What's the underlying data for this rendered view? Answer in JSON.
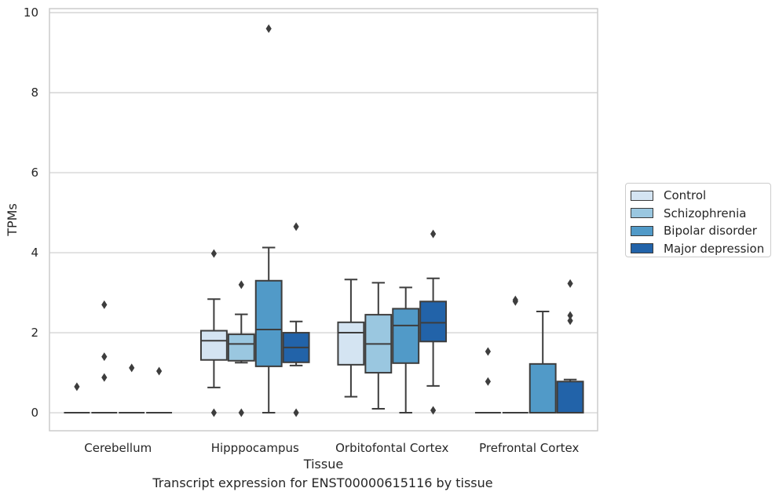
{
  "chart_data": {
    "type": "box",
    "xlabel": "Tissue",
    "ylabel": "TPMs",
    "ylim": [
      -0.45,
      10.1
    ],
    "yticks": [
      0,
      2,
      4,
      6,
      8,
      10
    ],
    "grid": "horizontal",
    "legend_position": "right",
    "categories": [
      "Cerebellum",
      "Hipppocampus",
      "Orbitofontal Cortex",
      "Prefrontal Cortex"
    ],
    "series": [
      {
        "name": "Control",
        "color": "#d4e4f2",
        "boxes": [
          {
            "min": 0,
            "q1": 0,
            "median": 0,
            "q3": 0,
            "max": 0,
            "outliers": [
              0.65
            ]
          },
          {
            "min": 0.63,
            "q1": 1.32,
            "median": 1.8,
            "q3": 2.05,
            "max": 2.84,
            "outliers": [
              3.98,
              0
            ]
          },
          {
            "min": 0.4,
            "q1": 1.2,
            "median": 2.0,
            "q3": 2.26,
            "max": 3.33,
            "outliers": []
          },
          {
            "min": 0,
            "q1": 0,
            "median": 0,
            "q3": 0,
            "max": 0,
            "outliers": [
              1.53,
              0.78
            ]
          }
        ]
      },
      {
        "name": "Schizophrenia",
        "color": "#9ac7e0",
        "boxes": [
          {
            "min": 0,
            "q1": 0,
            "median": 0,
            "q3": 0,
            "max": 0,
            "outliers": [
              2.7,
              1.4,
              0.88
            ]
          },
          {
            "min": 1.25,
            "q1": 1.3,
            "median": 1.72,
            "q3": 1.96,
            "max": 2.46,
            "outliers": [
              3.2,
              0
            ]
          },
          {
            "min": 0.1,
            "q1": 1.0,
            "median": 1.72,
            "q3": 2.45,
            "max": 3.25,
            "outliers": []
          },
          {
            "min": 0,
            "q1": 0,
            "median": 0,
            "q3": 0,
            "max": 0,
            "outliers": [
              2.82,
              2.78
            ]
          }
        ]
      },
      {
        "name": "Bipolar disorder",
        "color": "#519ac8",
        "boxes": [
          {
            "min": 0,
            "q1": 0,
            "median": 0,
            "q3": 0,
            "max": 0,
            "outliers": [
              1.12
            ]
          },
          {
            "min": 0,
            "q1": 1.16,
            "median": 2.08,
            "q3": 3.3,
            "max": 4.13,
            "outliers": [
              9.6
            ]
          },
          {
            "min": 0,
            "q1": 1.24,
            "median": 2.18,
            "q3": 2.6,
            "max": 3.13,
            "outliers": []
          },
          {
            "min": 0,
            "q1": 0,
            "median": 0,
            "q3": 1.22,
            "max": 2.53,
            "outliers": []
          }
        ]
      },
      {
        "name": "Major depression",
        "color": "#2263a9",
        "boxes": [
          {
            "min": 0,
            "q1": 0,
            "median": 0,
            "q3": 0,
            "max": 0,
            "outliers": [
              1.04
            ]
          },
          {
            "min": 1.18,
            "q1": 1.26,
            "median": 1.63,
            "q3": 2.0,
            "max": 2.28,
            "outliers": [
              4.65,
              0
            ]
          },
          {
            "min": 0.67,
            "q1": 1.78,
            "median": 2.25,
            "q3": 2.78,
            "max": 3.36,
            "outliers": [
              4.47,
              0.06
            ]
          },
          {
            "min": 0,
            "q1": 0,
            "median": 0,
            "q3": 0.78,
            "max": 0.83,
            "outliers": [
              3.23,
              2.43,
              2.3
            ]
          }
        ]
      }
    ]
  },
  "caption": "Transcript expression for ENST00000615116 by tissue"
}
